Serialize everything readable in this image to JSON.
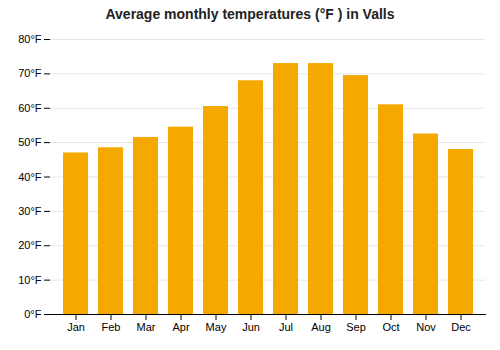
{
  "chart_data": {
    "type": "bar",
    "title": "Average monthly temperatures (°F ) in Valls",
    "categories": [
      "Jan",
      "Feb",
      "Mar",
      "Apr",
      "May",
      "Jun",
      "Jul",
      "Aug",
      "Sep",
      "Oct",
      "Nov",
      "Dec"
    ],
    "values": [
      47,
      48.5,
      51.5,
      54.5,
      60.5,
      68,
      73,
      73,
      69.5,
      61,
      52.5,
      48
    ],
    "color": "#F5A800",
    "ylim": [
      0,
      80
    ],
    "yticks": [
      {
        "value": 0,
        "label": "0°F"
      },
      {
        "value": 10,
        "label": "10°F"
      },
      {
        "value": 20,
        "label": "20°F"
      },
      {
        "value": 30,
        "label": "30°F"
      },
      {
        "value": 40,
        "label": "40°F"
      },
      {
        "value": 50,
        "label": "50°F"
      },
      {
        "value": 60,
        "label": "60°F"
      },
      {
        "value": 70,
        "label": "70°F"
      },
      {
        "value": 80,
        "label": "80°F"
      }
    ],
    "grid": true
  }
}
